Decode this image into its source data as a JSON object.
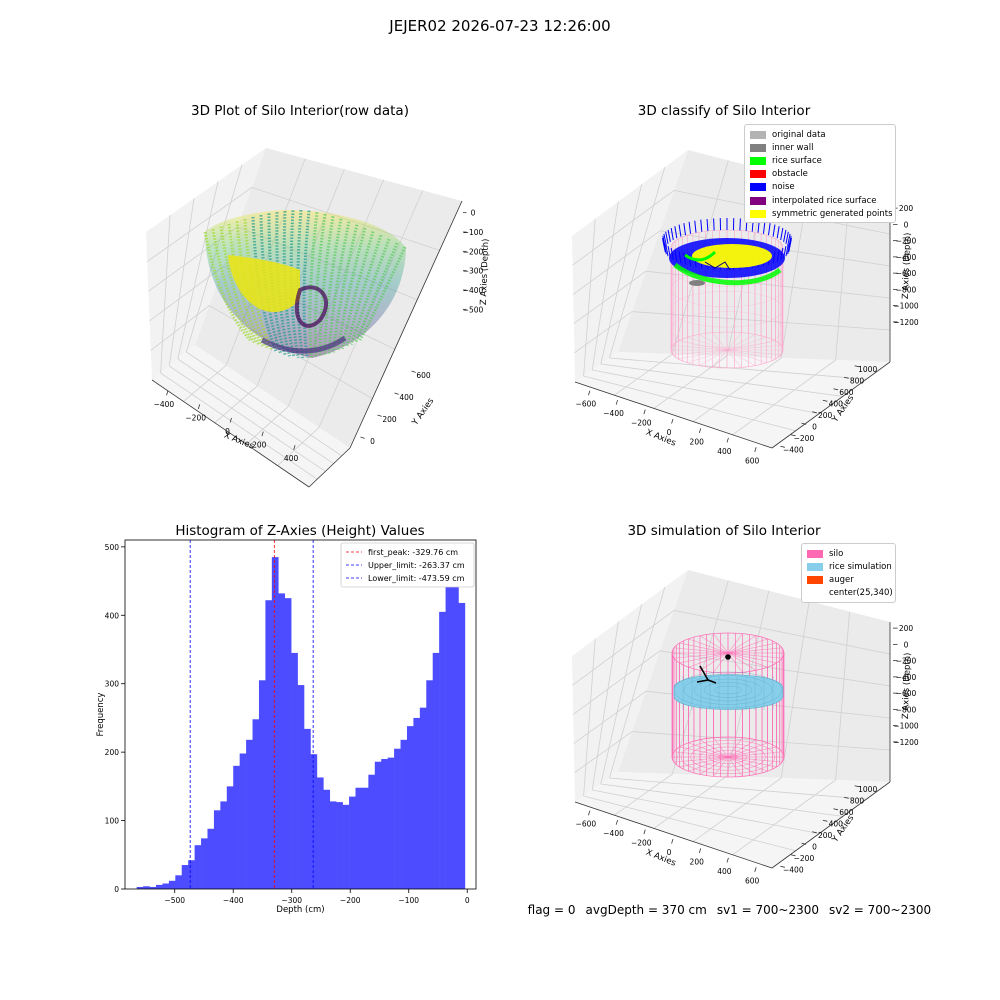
{
  "figure": {
    "suptitle": "JEJER02 2026-07-23 12:26:00",
    "footer": {
      "flag": "flag = 0",
      "avg_depth": "avgDepth = 370 cm",
      "sv1": "sv1 = 700~2300",
      "sv2": "sv2 = 700~2300"
    }
  },
  "chart_data": [
    {
      "type": "scatter",
      "title": "3D Plot of Silo Interior(row data)",
      "xlabel": "X Axies",
      "ylabel": "Y Axies",
      "zlabel": "Z Axies (Depth)",
      "x_ticks": [
        "−400",
        "−200",
        "0",
        "200",
        "400"
      ],
      "y_ticks": [
        "0",
        "200",
        "400",
        "600"
      ],
      "z_ticks": [
        "0",
        "−100",
        "−200",
        "−300",
        "−400",
        "−500"
      ],
      "xlim": [
        -450,
        450
      ],
      "ylim": [
        -100,
        750
      ],
      "zlim": [
        -580,
        0
      ],
      "colormap": "viridis"
    },
    {
      "type": "scatter",
      "title": "3D classify of Silo Interior",
      "xlabel": "X Axies",
      "ylabel": "Y Axies",
      "zlabel": "Z Axies (Depth)",
      "x_ticks": [
        "−600",
        "−400",
        "−200",
        "0",
        "200",
        "400",
        "600"
      ],
      "y_ticks": [
        "−400",
        "−200",
        "0",
        "200",
        "400",
        "600",
        "800",
        "1000"
      ],
      "z_ticks": [
        "200",
        "0",
        "−200",
        "−400",
        "−600",
        "−800",
        "−1000",
        "−1200"
      ],
      "legend": {
        "placement": "top-right",
        "entries": [
          {
            "label": "original data",
            "color": "#b3b3b3"
          },
          {
            "label": "inner wall",
            "color": "#808080"
          },
          {
            "label": "rice surface",
            "color": "#00ff00"
          },
          {
            "label": "obstacle",
            "color": "#ff0000"
          },
          {
            "label": "noise",
            "color": "#0000ff"
          },
          {
            "label": "interpolated rice surface",
            "color": "#800080"
          },
          {
            "label": "symmetric generated points",
            "color": "#ffff00"
          }
        ]
      },
      "silo_color": "#ff9ec8"
    },
    {
      "type": "bar",
      "title": "Histogram of Z-Axies (Height) Values",
      "xlabel": "Depth (cm)",
      "ylabel": "Frequency",
      "xlim": [
        -585,
        15
      ],
      "ylim": [
        0,
        510
      ],
      "x_ticks": [
        -500,
        -400,
        -300,
        -200,
        -100,
        0
      ],
      "y_ticks": [
        0,
        100,
        200,
        300,
        400,
        500
      ],
      "bin_edges_start": -565,
      "bin_width": 11,
      "values": [
        3,
        4,
        3,
        6,
        8,
        12,
        20,
        35,
        42,
        64,
        74,
        88,
        115,
        128,
        150,
        180,
        198,
        218,
        248,
        305,
        422,
        485,
        432,
        425,
        345,
        298,
        234,
        197,
        163,
        145,
        128,
        127,
        123,
        135,
        148,
        148,
        167,
        186,
        190,
        192,
        205,
        218,
        238,
        250,
        265,
        305,
        345,
        405,
        442,
        460,
        418
      ],
      "bar_color": "#4d4dff",
      "lines": [
        {
          "label": "first_peak: -329.76 cm",
          "x": -329.76,
          "color": "#ff0000"
        },
        {
          "label": "Upper_limit: -263.37 cm",
          "x": -263.37,
          "color": "#0000ff"
        },
        {
          "label": "Lower_limit: -473.59 cm",
          "x": -473.59,
          "color": "#0000ff"
        }
      ],
      "legend_placement": "top-right"
    },
    {
      "type": "scatter",
      "title": "3D simulation of Silo Interior",
      "xlabel": "X Axies",
      "ylabel": "Y Axies",
      "zlabel": "Z Axies (Depth)",
      "x_ticks": [
        "−600",
        "−400",
        "−200",
        "0",
        "200",
        "400",
        "600"
      ],
      "y_ticks": [
        "−400",
        "−200",
        "0",
        "200",
        "400",
        "600",
        "800",
        "1000"
      ],
      "z_ticks": [
        "200",
        "0",
        "−200",
        "−400",
        "−600",
        "−800",
        "−1000",
        "−1200"
      ],
      "legend": {
        "placement": "top-right",
        "entries": [
          {
            "label": "silo",
            "color": "#ff69b4"
          },
          {
            "label": "rice simulation",
            "color": "#87ceeb"
          },
          {
            "label": "auger",
            "color": "#ff4500"
          },
          {
            "label": "center(25,340)",
            "color": "#ffffff"
          }
        ]
      }
    }
  ]
}
